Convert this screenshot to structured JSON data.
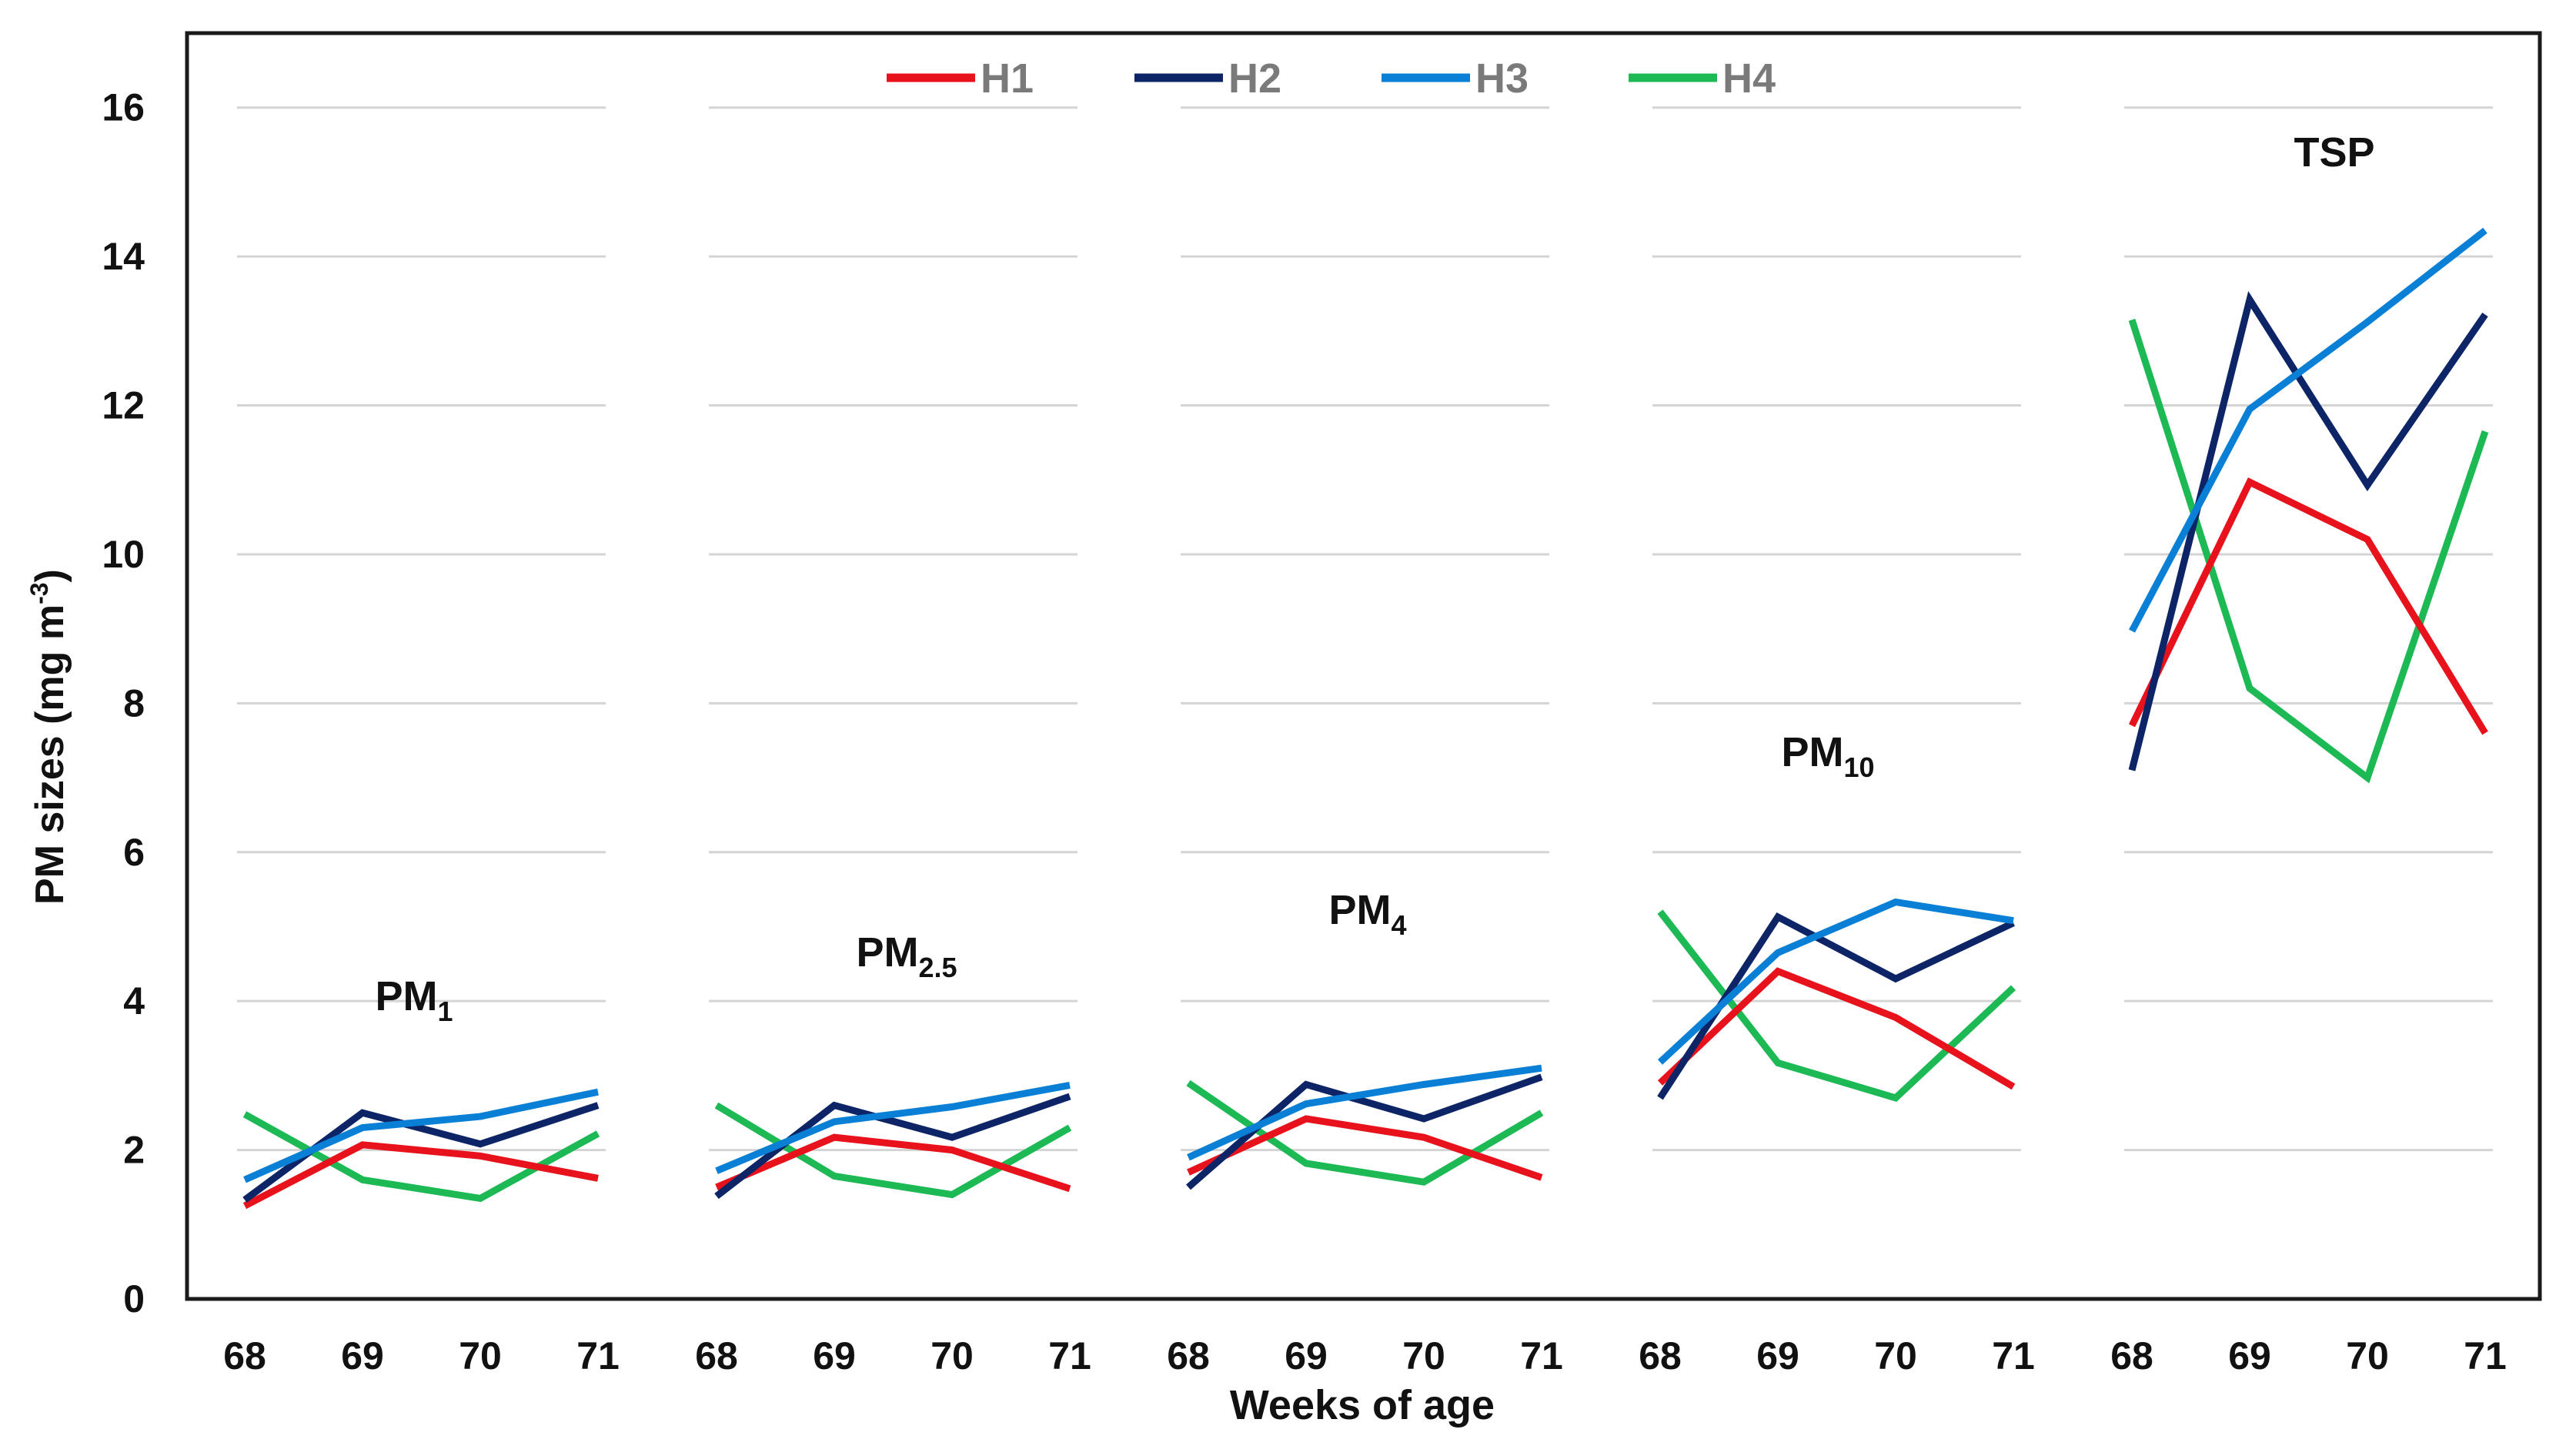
{
  "chart_data": {
    "type": "line",
    "title": "",
    "xlabel": "Weeks of age",
    "ylabel_parts": [
      "PM sizes (mg m",
      "-3",
      ")"
    ],
    "ylim": [
      0,
      17
    ],
    "yticks": [
      0,
      2,
      4,
      6,
      8,
      10,
      12,
      14,
      16
    ],
    "grid": true,
    "legend_position": "top-center",
    "series_names": [
      "H1",
      "H2",
      "H3",
      "H4"
    ],
    "colors": {
      "H1": "#e8121c",
      "H2": "#0d2566",
      "H3": "#0a7fd6",
      "H4": "#1db954"
    },
    "groups": [
      {
        "label": "PM",
        "subscript": "1",
        "weeks": [
          "68",
          "69",
          "70",
          "71"
        ],
        "series": [
          {
            "name": "H1",
            "values": [
              1.25,
              2.07,
              1.92,
              1.62
            ]
          },
          {
            "name": "H2",
            "values": [
              1.33,
              2.5,
              2.08,
              2.6
            ]
          },
          {
            "name": "H3",
            "values": [
              1.6,
              2.3,
              2.45,
              2.78
            ]
          },
          {
            "name": "H4",
            "values": [
              2.48,
              1.6,
              1.35,
              2.22
            ]
          }
        ]
      },
      {
        "label": "PM",
        "subscript": "2.5",
        "weeks": [
          "68",
          "69",
          "70",
          "71"
        ],
        "series": [
          {
            "name": "H1",
            "values": [
              1.5,
              2.17,
              2.0,
              1.48
            ]
          },
          {
            "name": "H2",
            "values": [
              1.38,
              2.6,
              2.17,
              2.72
            ]
          },
          {
            "name": "H3",
            "values": [
              1.72,
              2.38,
              2.58,
              2.87
            ]
          },
          {
            "name": "H4",
            "values": [
              2.6,
              1.65,
              1.4,
              2.3
            ]
          }
        ]
      },
      {
        "label": "PM",
        "subscript": "4",
        "weeks": [
          "68",
          "69",
          "70",
          "71"
        ],
        "series": [
          {
            "name": "H1",
            "values": [
              1.7,
              2.42,
              2.17,
              1.63
            ]
          },
          {
            "name": "H2",
            "values": [
              1.5,
              2.88,
              2.42,
              2.98
            ]
          },
          {
            "name": "H3",
            "values": [
              1.9,
              2.62,
              2.88,
              3.1
            ]
          },
          {
            "name": "H4",
            "values": [
              2.9,
              1.82,
              1.57,
              2.5
            ]
          }
        ]
      },
      {
        "label": "PM",
        "subscript": "10",
        "weeks": [
          "68",
          "69",
          "70",
          "71"
        ],
        "series": [
          {
            "name": "H1",
            "values": [
              2.9,
              4.4,
              3.78,
              2.85
            ]
          },
          {
            "name": "H2",
            "values": [
              2.7,
              5.13,
              4.3,
              5.05
            ]
          },
          {
            "name": "H3",
            "values": [
              3.18,
              4.65,
              5.33,
              5.08
            ]
          },
          {
            "name": "H4",
            "values": [
              5.2,
              3.17,
              2.7,
              4.18
            ]
          }
        ]
      },
      {
        "label": "TSP",
        "subscript": "",
        "weeks": [
          "68",
          "69",
          "70",
          "71"
        ],
        "series": [
          {
            "name": "H1",
            "values": [
              7.7,
              10.97,
              10.2,
              7.6
            ]
          },
          {
            "name": "H2",
            "values": [
              7.1,
              13.42,
              10.93,
              13.22
            ]
          },
          {
            "name": "H3",
            "values": [
              8.97,
              11.95,
              13.12,
              14.35
            ]
          },
          {
            "name": "H4",
            "values": [
              13.15,
              8.2,
              7.0,
              11.65
            ]
          }
        ]
      }
    ]
  }
}
